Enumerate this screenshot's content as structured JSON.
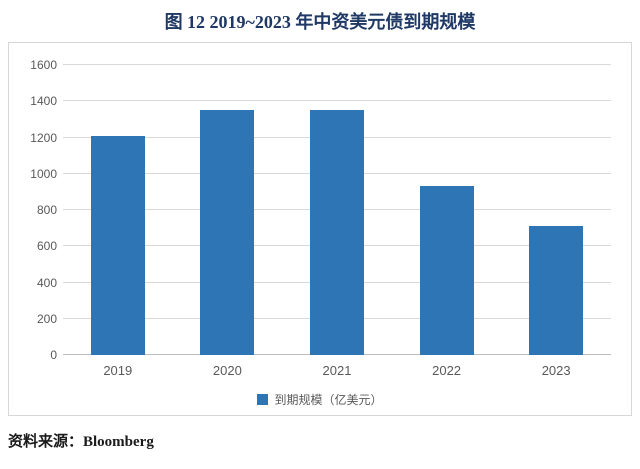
{
  "page_title": "图 12 2019~2023 年中资美元债到期规模",
  "source_note": "资料来源：Bloomberg",
  "legend": {
    "label": "到期规模（亿美元）"
  },
  "colors": {
    "bar": "#2E75B6",
    "title_text": "#1F3864",
    "gridline": "#D9D9D9",
    "baseline": "#BFBFBF",
    "axis_text": "#595959"
  },
  "chart_data": {
    "type": "bar",
    "categories": [
      "2019",
      "2020",
      "2021",
      "2022",
      "2023"
    ],
    "values": [
      1210,
      1350,
      1350,
      930,
      710
    ],
    "title": "图 12 2019~2023 年中资美元债到期规模",
    "xlabel": "",
    "ylabel": "",
    "ylim": [
      0,
      1600
    ],
    "ytick_step": 200,
    "legend_entries": [
      "到期规模（亿美元）"
    ],
    "legend_position": "bottom",
    "grid": true
  }
}
